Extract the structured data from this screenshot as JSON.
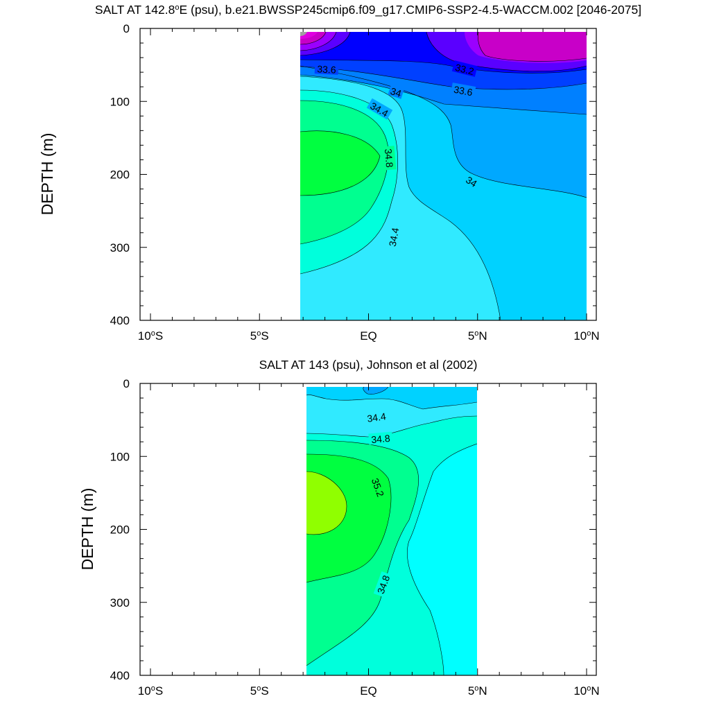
{
  "chart_data": [
    {
      "type": "contour",
      "title": "SALT AT 142.8°E (psu), b.e21.BWSSP245cmip6.f09_g17.CMIP6-SSP2-4.5-WACCM.002 [2046-2075]",
      "title_prefix": "SALT AT 142.8",
      "title_degree_mark": "o",
      "title_suffix": "E (psu), b.e21.BWSSP245cmip6.f09_g17.CMIP6-SSP2-4.5-WACCM.002 [2046-2075]",
      "xlabel": "",
      "ylabel": "DEPTH (m)",
      "x_range_deg": [
        -10,
        10
      ],
      "y_range_m": [
        0,
        400
      ],
      "y_inverted": true,
      "data_extent_lat": [
        -3,
        10
      ],
      "data_extent_depth": [
        5,
        400
      ],
      "x_ticks": [
        {
          "value": -10,
          "num": "10",
          "deg": "o",
          "hemi": "S"
        },
        {
          "value": -5,
          "num": "5",
          "deg": "o",
          "hemi": "S"
        },
        {
          "value": 0,
          "num": "EQ",
          "deg": "",
          "hemi": ""
        },
        {
          "value": 5,
          "num": "5",
          "deg": "o",
          "hemi": "N"
        },
        {
          "value": 10,
          "num": "10",
          "deg": "o",
          "hemi": "N"
        }
      ],
      "y_ticks": [
        0,
        100,
        200,
        300,
        400
      ],
      "contour_labels": [
        "33.6",
        "33.2",
        "34",
        "33.6",
        "34.4",
        "34.8",
        "34",
        "34.4"
      ],
      "colors": {
        "lt_33_0": "#c800c8",
        "c33_0_33_2": "#9a00ff",
        "c33_2_33_4": "#5a00ff",
        "c33_4_33_6": "#0000ff",
        "c33_6_33_8": "#0040ff",
        "c33_8_34_0": "#0080ff",
        "c34_0_34_2": "#00a8ff",
        "c34_2_34_4": "#00d2ff",
        "c34_4_34_6": "#30eaff",
        "c34_6_34_8": "#00ffdc",
        "c34_8_35_0": "#00ff90",
        "c35_0_35_2": "#00ff40",
        "gt_35_2": "#90ff00"
      }
    },
    {
      "type": "contour",
      "title": "SALT AT 143 (psu), Johnson et al (2002)",
      "title_prefix": "SALT AT 143 (psu), Johnson et al (2002)",
      "title_degree_mark": "",
      "title_suffix": "",
      "xlabel": "",
      "ylabel": "DEPTH (m)",
      "x_range_deg": [
        -10,
        10
      ],
      "y_range_m": [
        0,
        400
      ],
      "y_inverted": true,
      "data_extent_lat": [
        -2.8,
        5
      ],
      "data_extent_depth": [
        5,
        400
      ],
      "x_ticks": [
        {
          "value": -10,
          "num": "10",
          "deg": "o",
          "hemi": "S"
        },
        {
          "value": -5,
          "num": "5",
          "deg": "o",
          "hemi": "S"
        },
        {
          "value": 0,
          "num": "EQ",
          "deg": "",
          "hemi": ""
        },
        {
          "value": 5,
          "num": "5",
          "deg": "o",
          "hemi": "N"
        },
        {
          "value": 10,
          "num": "10",
          "deg": "o",
          "hemi": "N"
        }
      ],
      "y_ticks": [
        0,
        100,
        200,
        300,
        400
      ],
      "contour_labels": [
        "34.4",
        "34.8",
        "35.2",
        "34.8"
      ]
    }
  ]
}
